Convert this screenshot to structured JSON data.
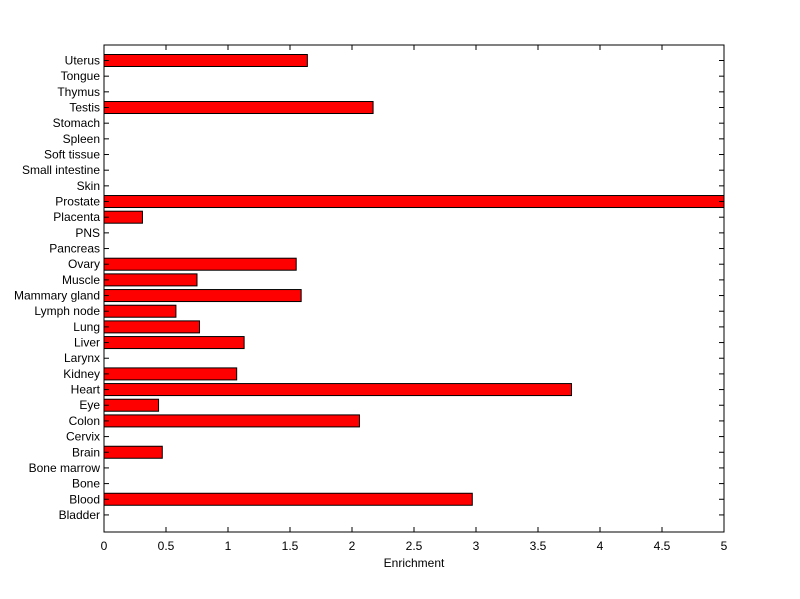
{
  "chart_data": {
    "type": "bar",
    "orientation": "horizontal",
    "title": "",
    "xlabel": "Enrichment",
    "ylabel": "",
    "xlim": [
      0,
      5
    ],
    "xticks": [
      "0",
      "0.5",
      "1",
      "1.5",
      "2",
      "2.5",
      "3",
      "3.5",
      "4",
      "4.5",
      "5"
    ],
    "grid": false,
    "bar_color": "#ff0000",
    "categories": [
      "Bladder",
      "Blood",
      "Bone",
      "Bone marrow",
      "Brain",
      "Cervix",
      "Colon",
      "Eye",
      "Heart",
      "Kidney",
      "Larynx",
      "Liver",
      "Lung",
      "Lymph node",
      "Mammary gland",
      "Muscle",
      "Ovary",
      "Pancreas",
      "PNS",
      "Placenta",
      "Prostate",
      "Skin",
      "Small intestine",
      "Soft tissue",
      "Spleen",
      "Stomach",
      "Testis",
      "Thymus",
      "Tongue",
      "Uterus"
    ],
    "values": [
      0,
      2.97,
      0,
      0,
      0.47,
      0,
      2.06,
      0.44,
      3.77,
      1.07,
      0,
      1.13,
      0.77,
      0.58,
      1.59,
      0.75,
      1.55,
      0,
      0,
      0.31,
      5.0,
      0,
      0,
      0,
      0,
      0,
      2.17,
      0,
      0,
      1.64
    ]
  }
}
